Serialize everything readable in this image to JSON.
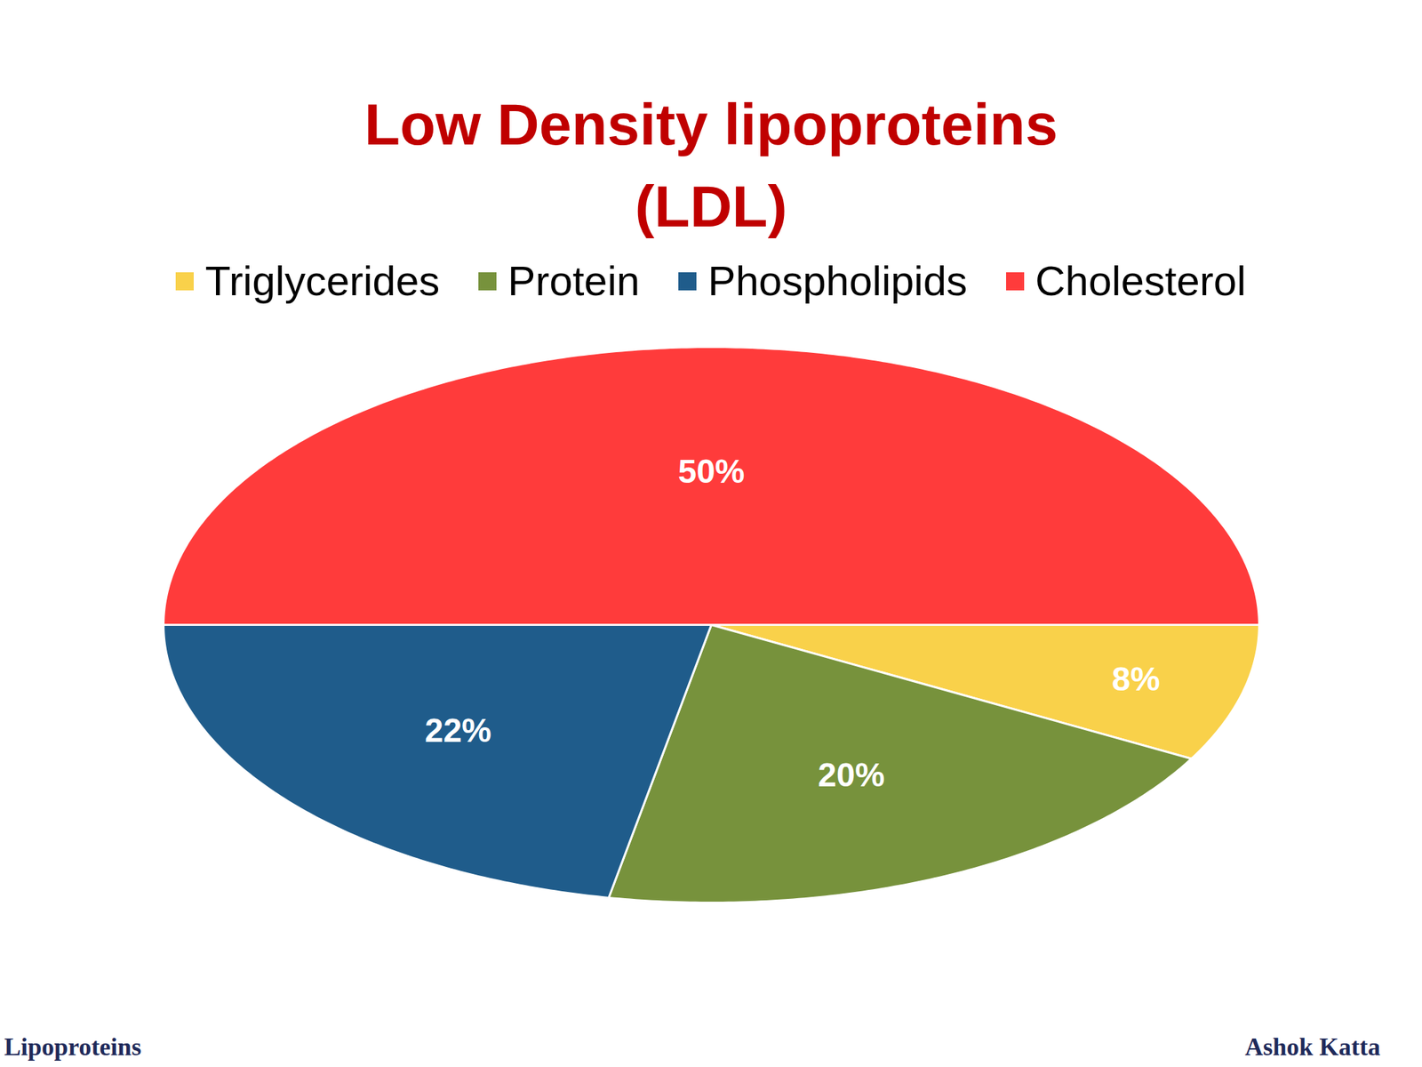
{
  "chart_data": {
    "type": "pie",
    "title": "Low Density lipoproteins (LDL)",
    "categories": [
      "Triglycerides",
      "Protein",
      "Phospholipids",
      "Cholesterol"
    ],
    "values": [
      8,
      20,
      22,
      50
    ],
    "value_labels": [
      "8%",
      "20%",
      "22%",
      "50%"
    ],
    "colors": [
      "#f9d14a",
      "#77923c",
      "#1f5c8b",
      "#ff3b3b"
    ],
    "data_labels": true,
    "legend": "top",
    "tick_labels": false
  },
  "footer": {
    "left": "Lipoproteins",
    "right": "Ashok Katta"
  }
}
